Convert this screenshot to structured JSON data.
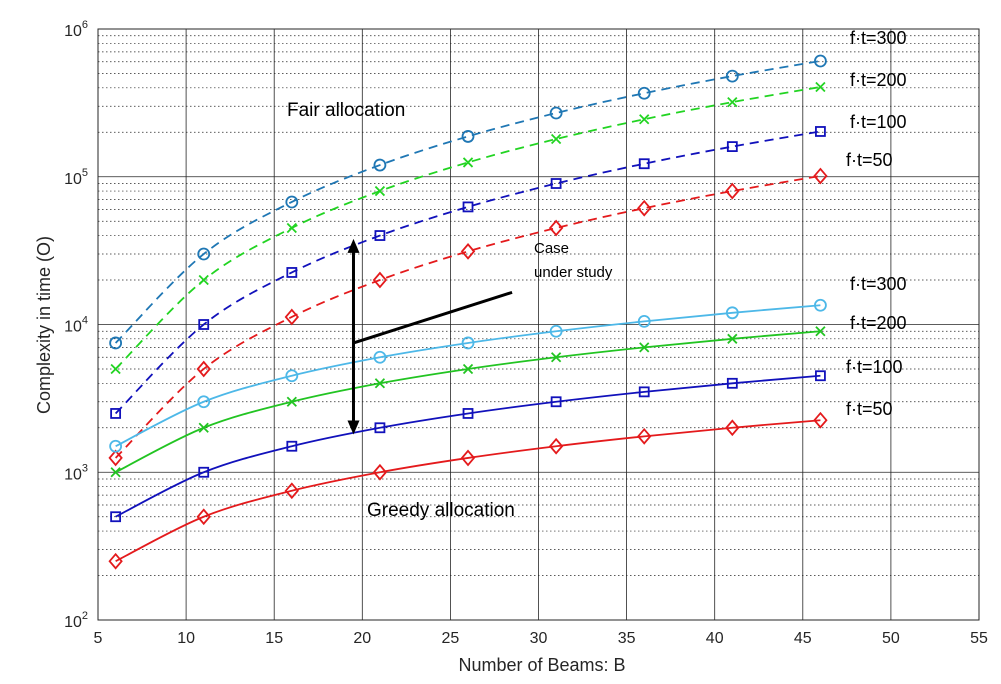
{
  "chart_data": {
    "type": "line",
    "title": "",
    "xlabel": "Number of Beams: B",
    "ylabel": "Complexity in time (O)",
    "xlim": [
      5,
      55
    ],
    "ylim": [
      100,
      1000000
    ],
    "yscale": "log",
    "x_ticks": [
      "5",
      "10",
      "15",
      "20",
      "25",
      "30",
      "35",
      "40",
      "45",
      "50",
      "55"
    ],
    "x_tick_values": [
      5,
      10,
      15,
      20,
      25,
      30,
      35,
      40,
      45,
      50,
      55
    ],
    "y_ticks": [
      {
        "base": "10",
        "exp": "2",
        "value": 100
      },
      {
        "base": "10",
        "exp": "3",
        "value": 1000
      },
      {
        "base": "10",
        "exp": "4",
        "value": 10000
      },
      {
        "base": "10",
        "exp": "5",
        "value": 100000
      },
      {
        "base": "10",
        "exp": "6",
        "value": 1000000
      }
    ],
    "grid": true,
    "x": [
      6,
      11,
      16,
      21,
      26,
      31,
      36,
      41,
      46
    ],
    "series": [
      {
        "name": "f·t=300",
        "group": "fair",
        "marker": "circle",
        "color": "#1f77b4",
        "dash": true,
        "values": [
          7500,
          30000,
          67500,
          120000,
          187500,
          270000,
          367500,
          480000,
          607500
        ]
      },
      {
        "name": "f·t=200",
        "group": "fair",
        "marker": "x",
        "color": "#22d422",
        "dash": true,
        "values": [
          5000,
          20000,
          45000,
          80000,
          125000,
          180000,
          245000,
          320000,
          405000
        ]
      },
      {
        "name": "f·t=100",
        "group": "fair",
        "marker": "square",
        "color": "#1111bb",
        "dash": true,
        "values": [
          2500,
          10000,
          22500,
          40000,
          62500,
          90000,
          122500,
          160000,
          202500
        ]
      },
      {
        "name": "f·t=50",
        "group": "fair",
        "marker": "diamond",
        "color": "#e41a1c",
        "dash": true,
        "values": [
          1250,
          5000,
          11250,
          20000,
          31250,
          45000,
          61250,
          80000,
          101250
        ]
      },
      {
        "name": "f·t=300",
        "group": "greedy",
        "marker": "circle",
        "color": "#4db8e8",
        "dash": false,
        "values": [
          1500,
          3000,
          4500,
          6000,
          7500,
          9000,
          10500,
          12000,
          13500
        ]
      },
      {
        "name": "f·t=200",
        "group": "greedy",
        "marker": "x",
        "color": "#22c422",
        "dash": false,
        "values": [
          1000,
          2000,
          3000,
          4000,
          5000,
          6000,
          7000,
          8000,
          9000
        ]
      },
      {
        "name": "f·t=100",
        "group": "greedy",
        "marker": "square",
        "color": "#1111bb",
        "dash": false,
        "values": [
          500,
          1000,
          1500,
          2000,
          2500,
          3000,
          3500,
          4000,
          4500
        ]
      },
      {
        "name": "f·t=50",
        "group": "greedy",
        "marker": "diamond",
        "color": "#e41a1c",
        "dash": false,
        "values": [
          250,
          500,
          750,
          1000,
          1250,
          1500,
          1750,
          2000,
          2250
        ]
      }
    ],
    "annotations": {
      "fair": "Fair allocation",
      "greedy": "Greedy allocation",
      "case_line1": "Case",
      "case_line2": "under study"
    },
    "arrow": {
      "x": 19.5,
      "y_top": 38000,
      "y_bottom": 1800
    },
    "pointer": {
      "x1": 19.5,
      "y1": 7500,
      "x2": 28.5,
      "y2": 16500
    }
  }
}
